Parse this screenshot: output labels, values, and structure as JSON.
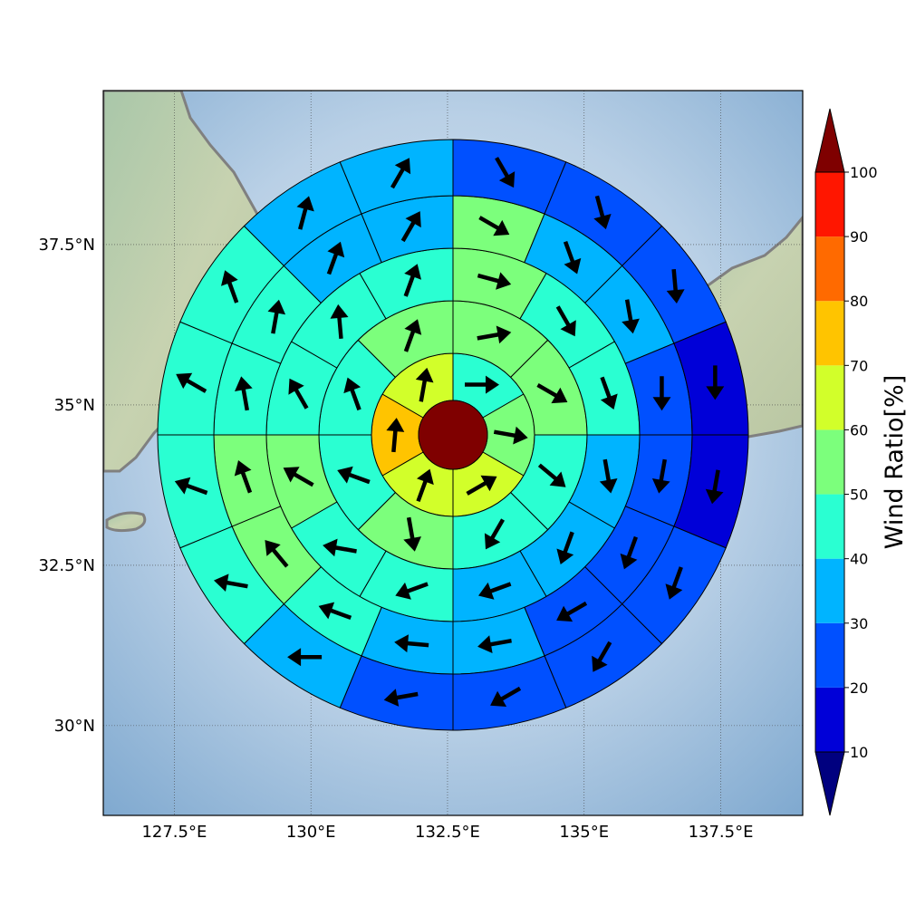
{
  "map": {
    "extent": {
      "lon_min": 126.2,
      "lon_max": 139.0,
      "lat_min": 28.6,
      "lat_max": 39.9
    },
    "center": {
      "lon": 132.6,
      "lat": 34.3
    },
    "lon_ticks": [
      127.5,
      130,
      132.5,
      135,
      137.5
    ],
    "lon_tick_labels": [
      "127.5°E",
      "130°E",
      "132.5°E",
      "135°E",
      "137.5°E"
    ],
    "lat_ticks": [
      30,
      32.5,
      35,
      37.5
    ],
    "lat_tick_labels": [
      "30°N",
      "32.5°N",
      "35°N",
      "37.5°N"
    ],
    "gridlines": true
  },
  "colorbar": {
    "title": "Wind Ratio[%]",
    "levels": [
      10,
      20,
      30,
      40,
      50,
      60,
      70,
      80,
      90,
      100
    ],
    "level_labels": [
      "10",
      "20",
      "30",
      "40",
      "50",
      "60",
      "70",
      "80",
      "90",
      "100"
    ],
    "colors": [
      "#0000d8",
      "#0050ff",
      "#00b4ff",
      "#2affd2",
      "#7cff7c",
      "#d2ff2a",
      "#ffc400",
      "#ff6a00",
      "#ff1600"
    ],
    "under_color": "#00007f",
    "over_color": "#7f0000",
    "extend": "both"
  },
  "chart_data": {
    "type": "polar-sector-wind-map",
    "center_ratio": 105,
    "sector_counts": [
      6,
      8,
      12,
      16,
      16
    ],
    "rings": [
      [
        40,
        55,
        60,
        65,
        70,
        60
      ],
      [
        55,
        55,
        45,
        45,
        50,
        40,
        45,
        50
      ],
      [
        50,
        45,
        40,
        30,
        30,
        30,
        40,
        45,
        55,
        45,
        45,
        40
      ],
      [
        50,
        30,
        30,
        20,
        20,
        20,
        20,
        30,
        30,
        45,
        50,
        50,
        45,
        45,
        30,
        30
      ],
      [
        25,
        25,
        20,
        15,
        15,
        20,
        20,
        20,
        20,
        30,
        40,
        45,
        45,
        45,
        30,
        30
      ]
    ],
    "arrow_directions_deg": [
      [
        90,
        100,
        60,
        20,
        5,
        10
      ],
      [
        80,
        120,
        130,
        210,
        170,
        290,
        340,
        20
      ],
      [
        105,
        150,
        160,
        170,
        200,
        250,
        250,
        280,
        300,
        330,
        355,
        20
      ],
      [
        120,
        160,
        170,
        180,
        190,
        200,
        240,
        260,
        275,
        290,
        320,
        340,
        350,
        10,
        20,
        30
      ],
      [
        150,
        165,
        175,
        180,
        190,
        200,
        210,
        240,
        260,
        270,
        280,
        290,
        300,
        340,
        15,
        30
      ]
    ]
  }
}
